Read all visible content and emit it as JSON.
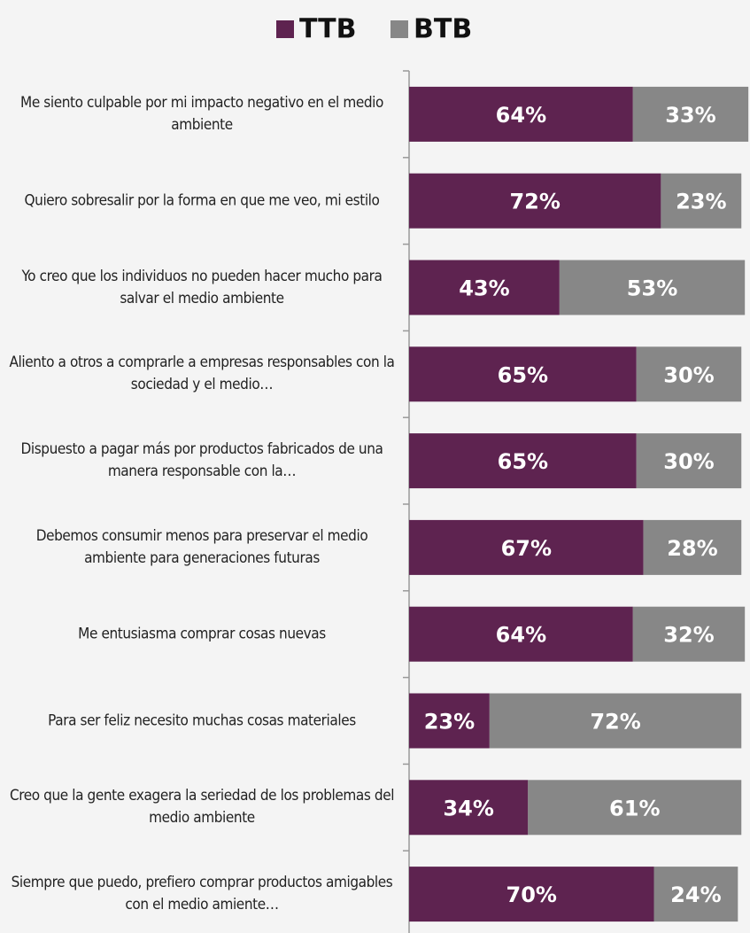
{
  "chart_data": {
    "type": "stacked-bar-horizontal",
    "categories": [
      "Me siento culpable por mi impacto negativo en el medio ambiente",
      "Quiero sobresalir por la forma en que me veo, mi estilo",
      "Yo creo que los individuos no pueden hacer mucho para salvar el medio ambiente",
      "Aliento a otros a comprarle a empresas responsables con la sociedad y el medio…",
      "Dispuesto a pagar más por productos fabricados de una manera responsable con la…",
      "Debemos consumir menos para preservar el medio ambiente para generaciones futuras",
      "Me entusiasma comprar cosas nuevas",
      "Para ser feliz necesito muchas cosas materiales",
      "Creo que la gente exagera la seriedad de los problemas del medio ambiente",
      "Siempre que puedo, prefiero comprar productos amigables con el medio amiente…"
    ],
    "series": [
      {
        "name": "TTB",
        "color": "#5e2350",
        "values": [
          64,
          72,
          43,
          65,
          65,
          67,
          64,
          23,
          34,
          70
        ],
        "value_labels": [
          "64%",
          "72%",
          "43%",
          "65%",
          "65%",
          "67%",
          "64%",
          "23%",
          "34%",
          "70%"
        ]
      },
      {
        "name": "BTB",
        "color": "#878787",
        "values": [
          33,
          23,
          53,
          30,
          30,
          28,
          32,
          72,
          61,
          24
        ],
        "value_labels": [
          "33%",
          "23%",
          "53%",
          "30%",
          "30%",
          "28%",
          "32%",
          "72%",
          "61%",
          "24%"
        ]
      }
    ],
    "legend": "top"
  }
}
